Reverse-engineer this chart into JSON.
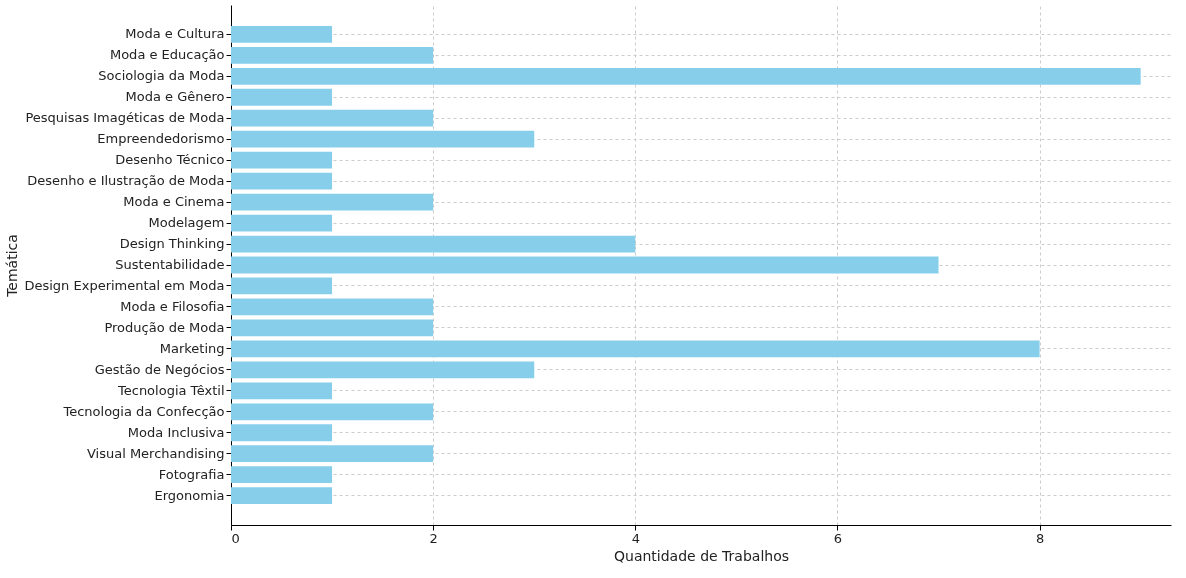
{
  "chart_data": {
    "type": "bar",
    "orientation": "horizontal",
    "xlabel": "Quantidade de Trabalhos",
    "ylabel": "Temática",
    "categories": [
      "Moda e Cultura",
      "Moda e Educação",
      "Sociologia da Moda",
      "Moda e Gênero",
      "Pesquisas Imagéticas de Moda",
      "Empreendedorismo",
      "Desenho Técnico",
      "Desenho e Ilustração de Moda",
      "Moda e Cinema",
      "Modelagem",
      "Design Thinking",
      "Sustentabilidade",
      "Design Experimental em Moda",
      "Moda e Filosofia",
      "Produção de Moda",
      "Marketing",
      "Gestão de Negócios",
      "Tecnologia Têxtil",
      "Tecnologia da Confecção",
      "Moda Inclusiva",
      "Visual Merchandising",
      "Fotografia",
      "Ergonomia"
    ],
    "values": [
      1,
      2,
      9,
      1,
      2,
      3,
      1,
      1,
      2,
      1,
      4,
      7,
      1,
      2,
      2,
      8,
      3,
      1,
      2,
      1,
      2,
      1,
      1
    ],
    "color": "#87ceeb",
    "xlim": [
      0,
      9.3
    ],
    "xticks": [
      0,
      2,
      4,
      6,
      8
    ],
    "grid": true
  }
}
